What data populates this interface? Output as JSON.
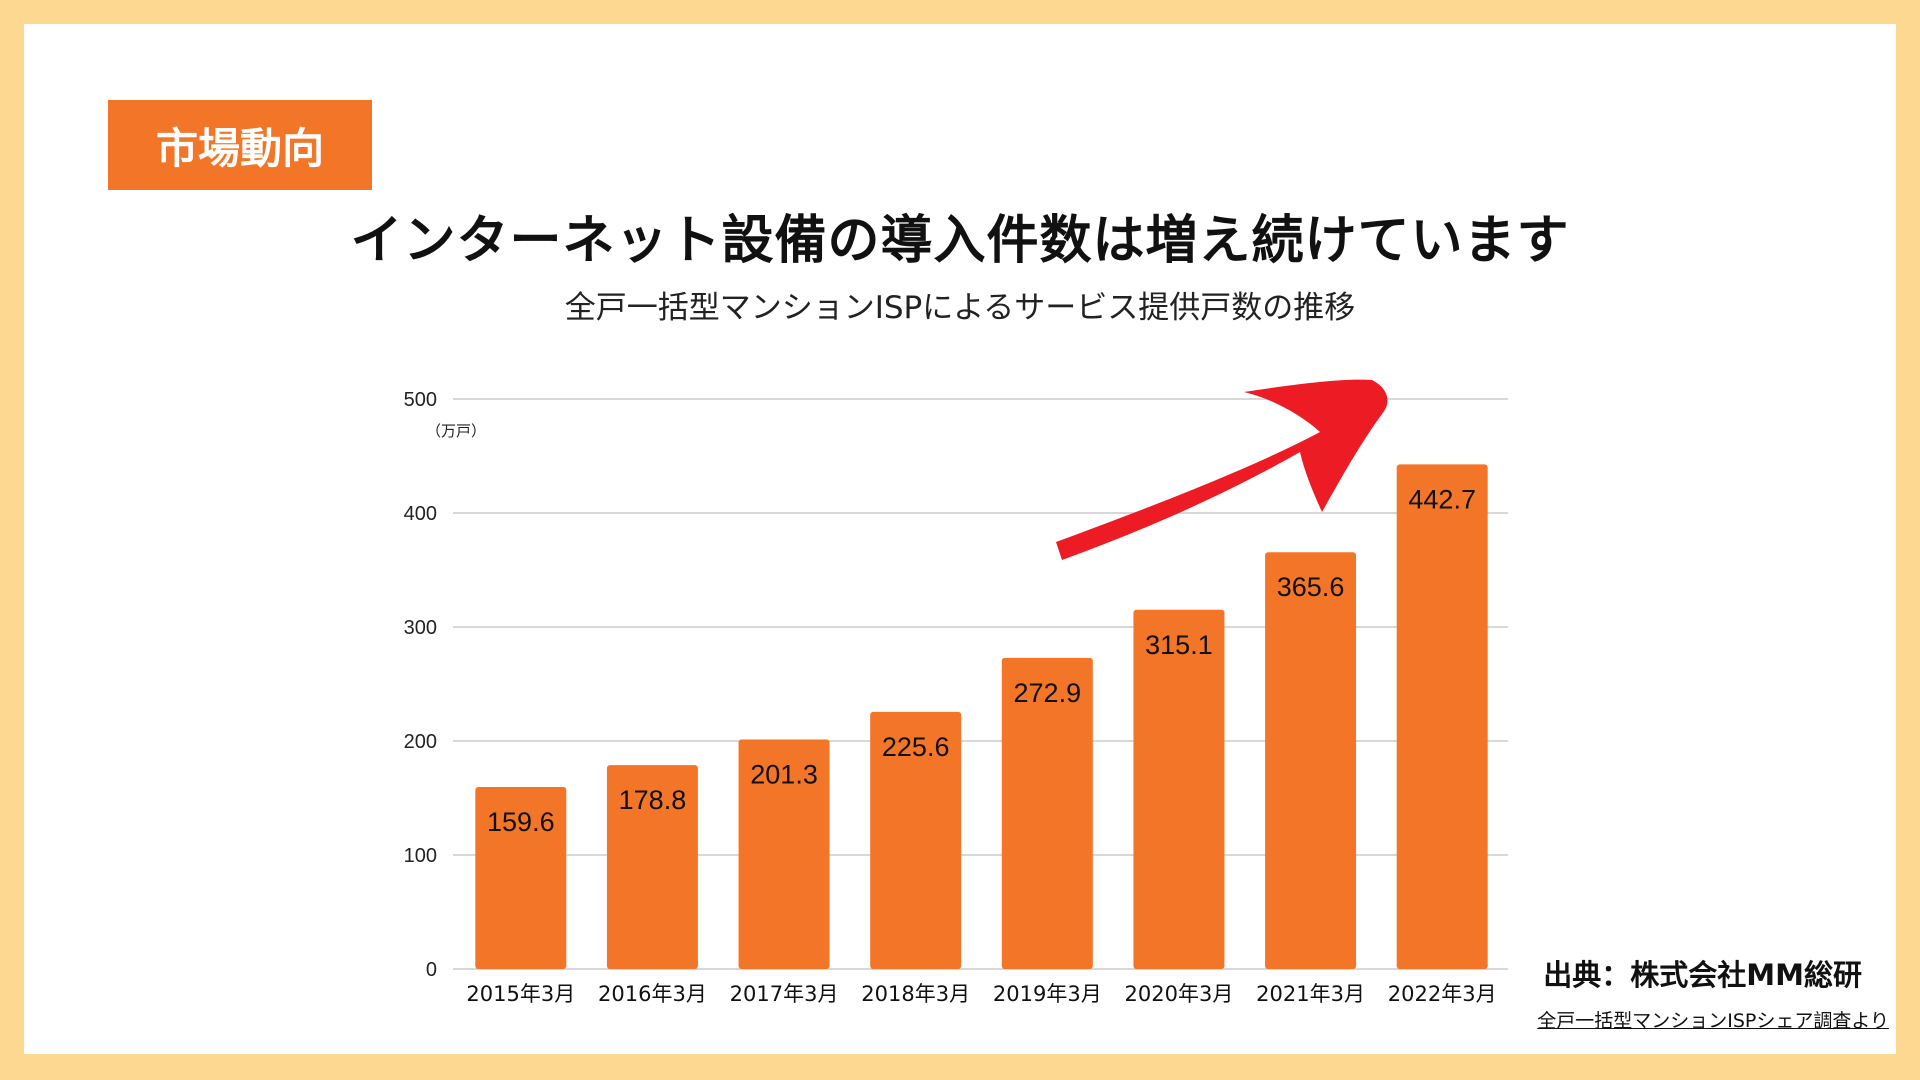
{
  "badge": "市場動向",
  "title": "インターネット設備の導入件数は増え続けています",
  "subtitle": "全戸一括型マンションISPによるサービス提供戸数の推移",
  "source": "出典：株式会社MM総研",
  "source_note": "全戸一括型マンションISPシェア調査より",
  "colors": {
    "bar": "#F37527",
    "arrow": "#ED1C24",
    "gridline": "#CCCCCC",
    "page_border": "#FDD891",
    "badge_bg": "#F37527"
  },
  "chart_data": {
    "type": "bar",
    "categories": [
      "2015年3月",
      "2016年3月",
      "2017年3月",
      "2018年3月",
      "2019年3月",
      "2020年3月",
      "2021年3月",
      "2022年3月"
    ],
    "values": [
      159.6,
      178.8,
      201.3,
      225.6,
      272.9,
      315.1,
      365.6,
      442.7
    ],
    "value_labels": [
      "159.6",
      "178.8",
      "201.3",
      "225.6",
      "272.9",
      "315.1",
      "365.6",
      "442.7"
    ],
    "y_ticks": [
      0,
      100,
      200,
      300,
      400,
      500
    ],
    "y_unit": "（万戸）",
    "ylim": [
      0,
      500
    ],
    "grid": true,
    "annotation": "upward-trend-arrow"
  }
}
